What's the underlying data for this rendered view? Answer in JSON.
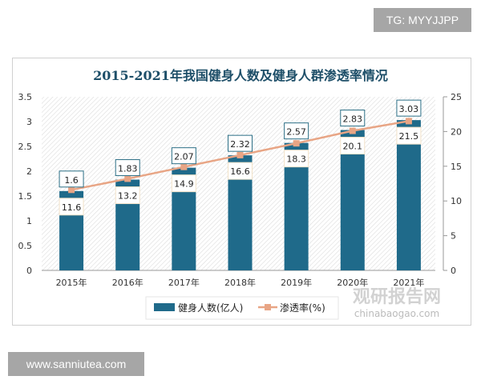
{
  "watermarks": {
    "tg": "TG: MYYJJPP",
    "site": "www.sanniutea.com",
    "logo_cn": "观研报告网",
    "logo_en": "chinabaogao.com"
  },
  "chart_data": {
    "type": "bar+line",
    "title": "2015-2021年我国健身人数及健身人群渗透率情况",
    "categories": [
      "2015年",
      "2016年",
      "2017年",
      "2018年",
      "2019年",
      "2020年",
      "2021年"
    ],
    "series": [
      {
        "name": "健身人数(亿人)",
        "type": "bar",
        "axis": "left",
        "values": [
          1.6,
          1.83,
          2.07,
          2.32,
          2.57,
          2.83,
          3.03
        ],
        "labels": [
          "1.6",
          "1.83",
          "2.07",
          "2.32",
          "2.57",
          "2.83",
          "3.03"
        ],
        "color": "#1f6a8a"
      },
      {
        "name": "渗透率(%)",
        "type": "line",
        "axis": "right",
        "values": [
          11.6,
          13.2,
          14.9,
          16.6,
          18.3,
          20.1,
          21.5
        ],
        "labels": [
          "11.6",
          "13.2",
          "14.9",
          "16.6",
          "18.3",
          "20.1",
          "21.5"
        ],
        "color": "#e8a585"
      }
    ],
    "y_left": {
      "range": [
        0,
        3.5
      ],
      "ticks": [
        "0",
        "0.5",
        "1",
        "1.5",
        "2",
        "2.5",
        "3",
        "3.5"
      ]
    },
    "y_right": {
      "range": [
        0,
        25
      ],
      "ticks": [
        "0",
        "5",
        "10",
        "15",
        "20",
        "25"
      ]
    },
    "legend": "bottom",
    "grid": false
  }
}
